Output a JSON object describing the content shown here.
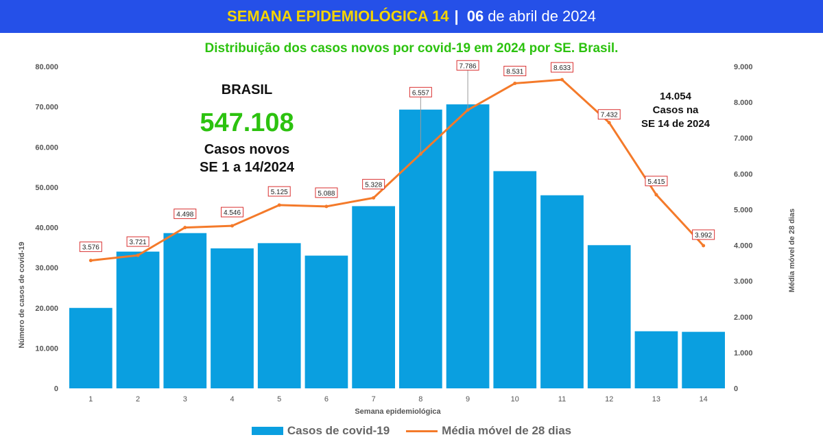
{
  "header": {
    "title": "SEMANA EPIDEMIOLÓGICA 14",
    "separator": "|",
    "date_day": "06",
    "date_rest": "de abril de 2024",
    "bg_color": "#2550e8",
    "title_color": "#f5d400"
  },
  "annotations": {
    "brasil_label": "BRASIL",
    "total_value": "547.108",
    "total_line1": "Casos novos",
    "total_line2": "SE 1 a 14/2024",
    "se14_value": "14.054",
    "se14_line1": "Casos na",
    "se14_line2": "SE 14 de 2024"
  },
  "legend": {
    "bars_label": "Casos de covid-19",
    "line_label": "Média móvel de 28 dias"
  },
  "chart_data": {
    "type": "bar",
    "title": "Distribuição dos casos novos por covid-19 em 2024 por SE. Brasil.",
    "xlabel": "Semana epidemiológica",
    "ylabel": "Número de casos de covid-19",
    "y2label": "Média móvel de 28 dias",
    "categories": [
      "1",
      "2",
      "3",
      "4",
      "5",
      "6",
      "7",
      "8",
      "9",
      "10",
      "11",
      "12",
      "13",
      "14"
    ],
    "ylim": [
      0,
      80000
    ],
    "y2lim": [
      0,
      9000
    ],
    "yticks": [
      "0",
      "10.000",
      "20.000",
      "30.000",
      "40.000",
      "50.000",
      "60.000",
      "70.000",
      "80.000"
    ],
    "y2ticks": [
      "0",
      "1.000",
      "2.000",
      "3.000",
      "4.000",
      "5.000",
      "6.000",
      "7.000",
      "8.000",
      "9.000"
    ],
    "series": [
      {
        "name": "Casos de covid-19",
        "kind": "bar",
        "axis": "left",
        "color": "#0a9fe0",
        "values": [
          20000,
          34000,
          38600,
          34800,
          36100,
          33000,
          45300,
          69300,
          70600,
          54000,
          48000,
          35600,
          14200,
          14054
        ]
      },
      {
        "name": "Média móvel de 28 dias",
        "kind": "line",
        "axis": "right",
        "color": "#f47a2a",
        "values": [
          3576,
          3721,
          4498,
          4546,
          5125,
          5088,
          5328,
          6557,
          7786,
          8531,
          8633,
          7432,
          5415,
          3992
        ],
        "labels": [
          "3.576",
          "3.721",
          "4.498",
          "4.546",
          "5.125",
          "5.088",
          "5.328",
          "6.557",
          "7.786",
          "8.531",
          "8.633",
          "7.432",
          "5.415",
          "3.992"
        ]
      }
    ],
    "grid": false,
    "legend_position": "bottom"
  }
}
